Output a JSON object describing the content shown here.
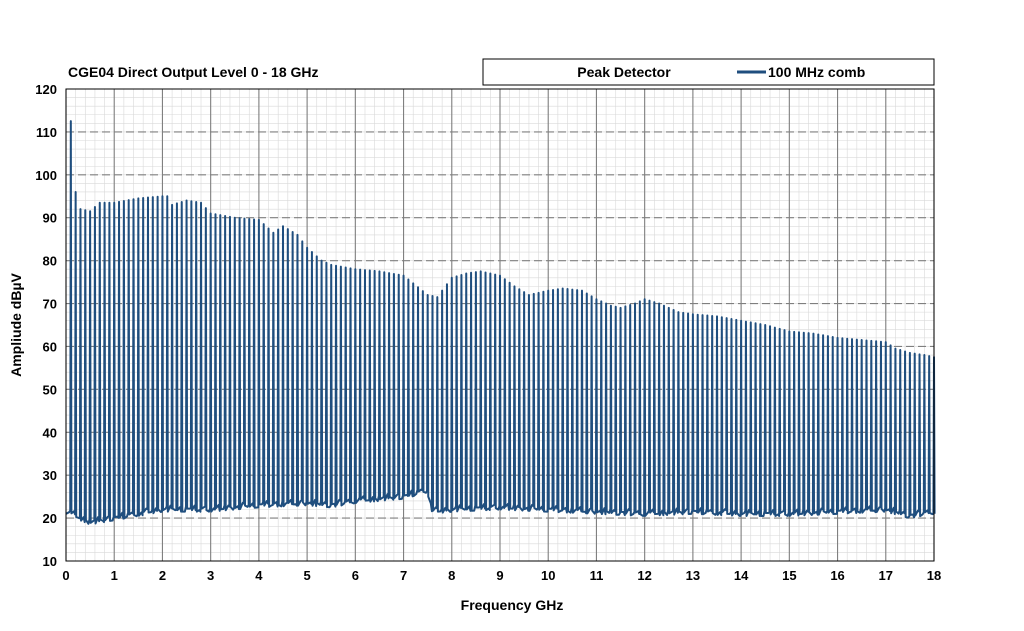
{
  "chart_data": {
    "type": "line",
    "title": "CGE04 Direct Output Level 0 - 18 GHz",
    "xlabel": "Frequency GHz",
    "ylabel": "Ampliude dBµV",
    "xlim": [
      0,
      18
    ],
    "ylim": [
      10,
      120
    ],
    "x_ticks": [
      "0",
      "1",
      "2",
      "3",
      "4",
      "5",
      "6",
      "7",
      "8",
      "9",
      "10",
      "11",
      "12",
      "13",
      "14",
      "15",
      "16",
      "17",
      "18"
    ],
    "y_ticks": [
      "10",
      "20",
      "30",
      "40",
      "50",
      "60",
      "70",
      "80",
      "90",
      "100",
      "110",
      "120"
    ],
    "grid": true,
    "legend_position": "top-right",
    "legend": {
      "detector": "Peak Detector",
      "series_label": "100 MHz comb"
    },
    "colors": {
      "series": "#1f4e7e",
      "grid_major": "#7f7f7f",
      "grid_minor": "#d9d9d9"
    },
    "series": [
      {
        "name": "100 MHz comb",
        "comb_spacing_ghz": 0.1,
        "peak_envelope": {
          "x": [
            0.1,
            0.2,
            0.3,
            0.5,
            0.7,
            1.0,
            1.5,
            2.0,
            2.1,
            2.2,
            2.5,
            2.8,
            3.0,
            3.5,
            4.0,
            4.3,
            4.5,
            4.8,
            5.0,
            5.3,
            5.5,
            6.0,
            6.5,
            7.0,
            7.5,
            7.7,
            8.0,
            8.3,
            8.6,
            9.0,
            9.3,
            9.6,
            10.0,
            10.3,
            10.7,
            11.0,
            11.3,
            11.5,
            11.8,
            12.0,
            12.3,
            12.7,
            13.0,
            13.5,
            14.0,
            14.5,
            15.0,
            15.5,
            16.0,
            16.5,
            17.0,
            17.2,
            17.5,
            17.8,
            18.0
          ],
          "y": [
            112.5,
            96,
            92,
            91.5,
            93.5,
            93.5,
            94.5,
            95,
            95,
            93,
            94,
            93.5,
            91,
            90,
            89.5,
            86.5,
            88,
            86,
            83,
            80,
            79,
            78,
            77.5,
            76.5,
            72,
            71.5,
            76,
            77,
            77.5,
            76.5,
            74,
            72,
            73,
            73.5,
            73,
            71,
            69.5,
            69,
            70,
            71,
            70,
            68,
            67.5,
            67,
            66,
            65,
            63.5,
            63,
            62,
            61.5,
            61,
            59.5,
            58.5,
            58,
            57.5
          ]
        },
        "noise_floor": {
          "x": [
            0,
            0.3,
            0.5,
            1.0,
            2.0,
            3.0,
            4.0,
            5.0,
            5.5,
            6.0,
            7.0,
            7.5,
            7.6,
            8.0,
            9.0,
            10.0,
            11.0,
            12.0,
            13.0,
            14.0,
            15.0,
            16.0,
            17.0,
            17.5,
            18.0
          ],
          "y": [
            21,
            19.5,
            18.5,
            19.5,
            21.5,
            21.5,
            22.5,
            23,
            22.5,
            23.5,
            24.5,
            26,
            21,
            21.5,
            22,
            21.5,
            21,
            20.5,
            21,
            20.5,
            20.5,
            21,
            21.5,
            20,
            21
          ]
        }
      }
    ]
  }
}
